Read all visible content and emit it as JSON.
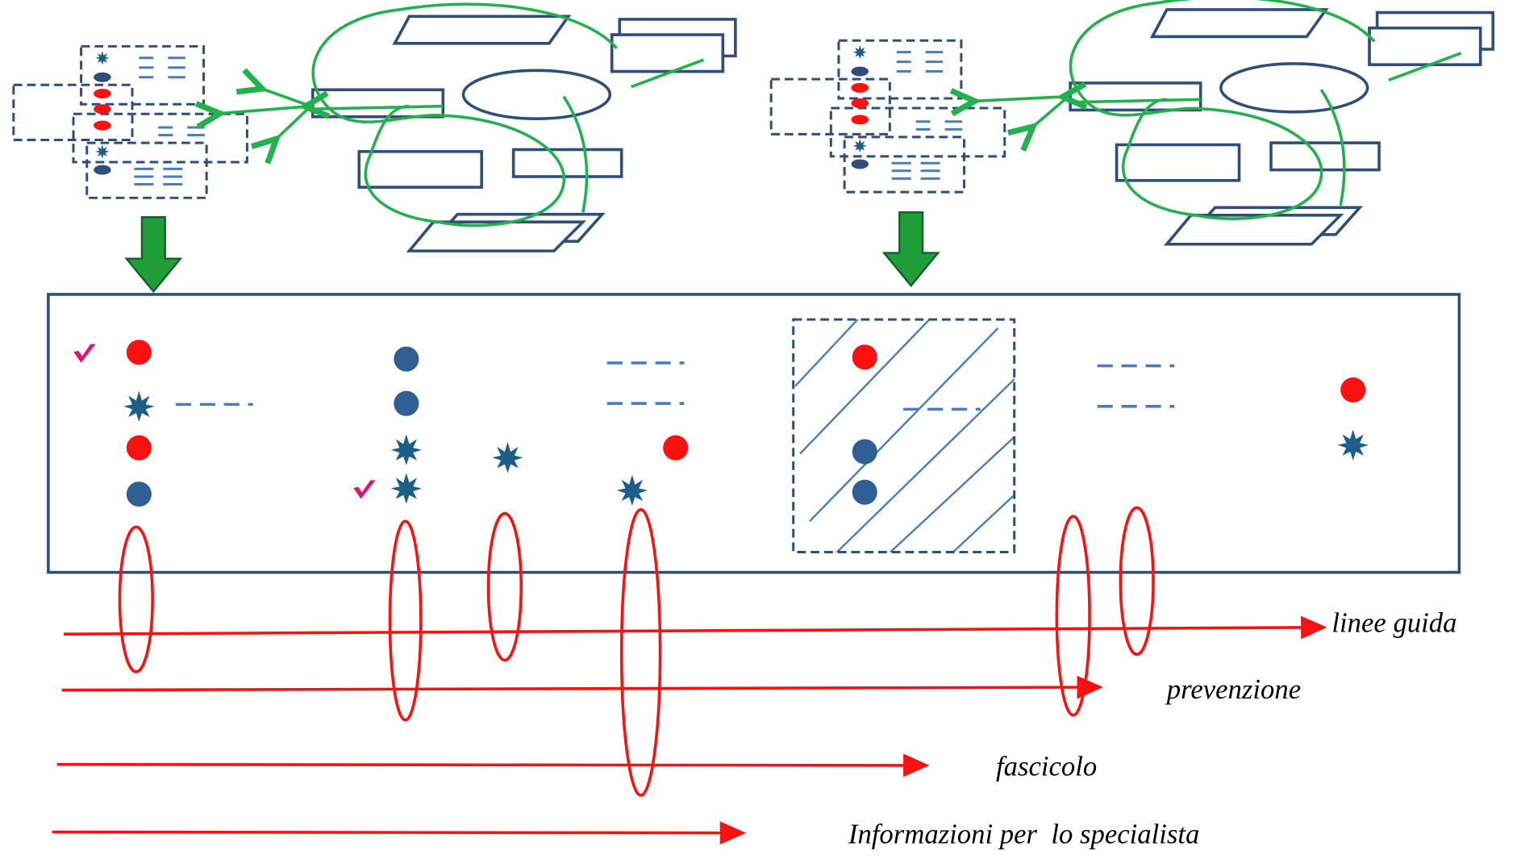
{
  "streams": [
    {
      "label": "linee guida"
    },
    {
      "label": "prevenzione"
    },
    {
      "label": "fascicolo"
    },
    {
      "label": "Informazioni per  lo specialista"
    }
  ]
}
